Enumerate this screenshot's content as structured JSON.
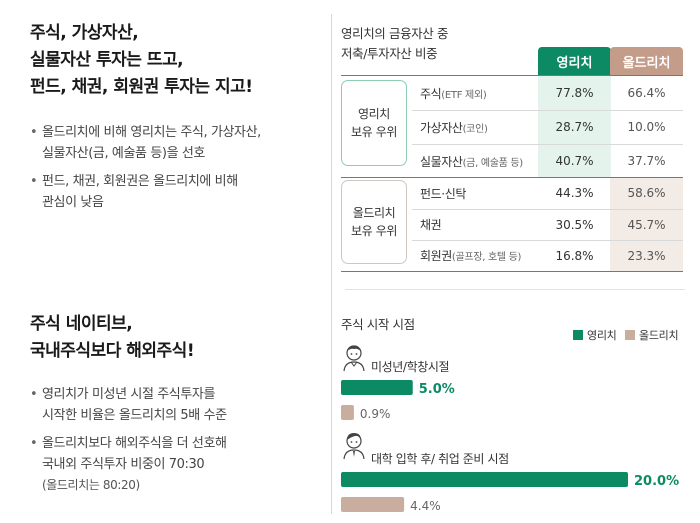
{
  "left": {
    "headline1": [
      "주식, 가상자산,",
      "실물자산 투자는 뜨고,",
      "펀드, 채권, 회원권 투자는 지고!"
    ],
    "bullets1": [
      {
        "lines": [
          "올드리치에 비해 영리치는 주식, 가상자산,",
          "실물자산(금, 예술품 등)을 선호"
        ]
      },
      {
        "lines": [
          "펀드, 채권, 회원권은 올드리치에 비해",
          "관심이 낮음"
        ]
      }
    ],
    "headline2": [
      "주식 네이티브,",
      "국내주식보다 해외주식!"
    ],
    "bullets2": [
      {
        "lines": [
          "영리치가 미성년 시절 주식투자를",
          "시작한 비율은 올드리치의 5배 수준"
        ]
      },
      {
        "lines": [
          "올드리치보다 해외주식을 더 선호해",
          "국내외 주식투자 비중이 70:30"
        ],
        "note": "(올드리치는 80:20)"
      }
    ]
  },
  "table": {
    "title_lines": [
      "영리치의 금융자산 중",
      "저축/투자자산 비중"
    ],
    "col_young": "영리치",
    "col_old": "올드리치",
    "group_young": [
      "영리치",
      "보유 우위"
    ],
    "group_old": [
      "올드리치",
      "보유 우위"
    ],
    "colors": {
      "young": "#0b8a64",
      "old": "#c49c8a"
    },
    "rows": [
      {
        "label": "주식",
        "sub": "(ETF 제외)",
        "young": "77.8%",
        "old": "66.4%"
      },
      {
        "label": "가상자산",
        "sub": "(코인)",
        "young": "28.7%",
        "old": "10.0%"
      },
      {
        "label": "실물자산",
        "sub": "(금, 예술품 등)",
        "young": "40.7%",
        "old": "37.7%"
      },
      {
        "label": "펀드·신탁",
        "sub": "",
        "young": "44.3%",
        "old": "58.6%"
      },
      {
        "label": "채권",
        "sub": "",
        "young": "30.5%",
        "old": "45.7%"
      },
      {
        "label": "회원권",
        "sub": "(골프장, 호텔 등)",
        "young": "16.8%",
        "old": "23.3%"
      }
    ]
  },
  "chart_data": [
    {
      "type": "table",
      "title": "영리치의 금융자산 중 저축/투자자산 비중",
      "columns": [
        "영리치",
        "올드리치"
      ],
      "rows": [
        "주식(ETF 제외)",
        "가상자산(코인)",
        "실물자산(금, 예술품 등)",
        "펀드·신탁",
        "채권",
        "회원권(골프장, 호텔 등)"
      ],
      "values": [
        [
          77.8,
          66.4
        ],
        [
          28.7,
          10.0
        ],
        [
          40.7,
          37.7
        ],
        [
          44.3,
          58.6
        ],
        [
          30.5,
          45.7
        ],
        [
          16.8,
          23.3
        ]
      ]
    },
    {
      "type": "bar",
      "title": "주식 시작 시점",
      "categories": [
        "미성년/학창시절",
        "대학 입학 후/ 취업 준비 시점"
      ],
      "series": [
        {
          "name": "영리치",
          "values": [
            5.0,
            20.0
          ],
          "labels": [
            "5.0%",
            "20.0%"
          ],
          "color": "#0b8a64"
        },
        {
          "name": "올드리치",
          "values": [
            0.9,
            4.4
          ],
          "labels": [
            "0.9%",
            "4.4%"
          ],
          "color": "#c9ad9f"
        }
      ],
      "xlim": [
        0,
        20
      ]
    }
  ]
}
